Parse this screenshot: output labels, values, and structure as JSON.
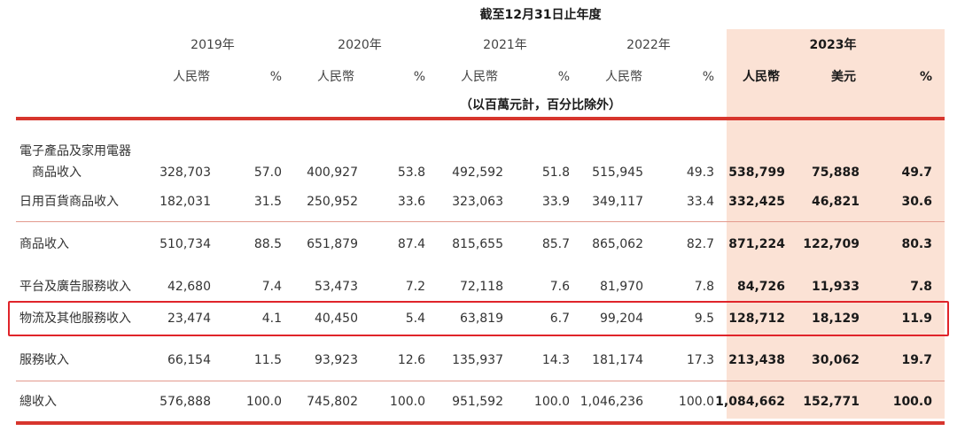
{
  "header": {
    "period": "截至12月31日止年度",
    "years": [
      "2019年",
      "2020年",
      "2021年",
      "2022年",
      "2023年"
    ],
    "currency_rmb": "人民幣",
    "currency_usd": "美元",
    "percent": "%",
    "unit_note": "（以百萬元計，百分比除外）"
  },
  "rows": [
    {
      "label": "電子產品及家用電器",
      "label2": "商品收入",
      "v2019": "328,703",
      "p2019": "57.0",
      "v2020": "400,927",
      "p2020": "53.8",
      "v2021": "492,592",
      "p2021": "51.8",
      "v2022": "515,945",
      "p2022": "49.3",
      "v2023": "538,799",
      "u2023": "75,888",
      "p2023": "49.7"
    },
    {
      "label": "日用百貨商品收入",
      "v2019": "182,031",
      "p2019": "31.5",
      "v2020": "250,952",
      "p2020": "33.6",
      "v2021": "323,063",
      "p2021": "33.9",
      "v2022": "349,117",
      "p2022": "33.4",
      "v2023": "332,425",
      "u2023": "46,821",
      "p2023": "30.6"
    },
    {
      "label": "商品收入",
      "v2019": "510,734",
      "p2019": "88.5",
      "v2020": "651,879",
      "p2020": "87.4",
      "v2021": "815,655",
      "p2021": "85.7",
      "v2022": "865,062",
      "p2022": "82.7",
      "v2023": "871,224",
      "u2023": "122,709",
      "p2023": "80.3"
    },
    {
      "label": "平台及廣告服務收入",
      "v2019": "42,680",
      "p2019": "7.4",
      "v2020": "53,473",
      "p2020": "7.2",
      "v2021": "72,118",
      "p2021": "7.6",
      "v2022": "81,970",
      "p2022": "7.8",
      "v2023": "84,726",
      "u2023": "11,933",
      "p2023": "7.8"
    },
    {
      "label": "物流及其他服務收入",
      "v2019": "23,474",
      "p2019": "4.1",
      "v2020": "40,450",
      "p2020": "5.4",
      "v2021": "63,819",
      "p2021": "6.7",
      "v2022": "99,204",
      "p2022": "9.5",
      "v2023": "128,712",
      "u2023": "18,129",
      "p2023": "11.9"
    },
    {
      "label": "服務收入",
      "v2019": "66,154",
      "p2019": "11.5",
      "v2020": "93,923",
      "p2020": "12.6",
      "v2021": "135,937",
      "p2021": "14.3",
      "v2022": "181,174",
      "p2022": "17.3",
      "v2023": "213,438",
      "u2023": "30,062",
      "p2023": "19.7"
    },
    {
      "label": "總收入",
      "v2019": "576,888",
      "p2019": "100.0",
      "v2020": "745,802",
      "p2020": "100.0",
      "v2021": "951,592",
      "p2021": "100.0",
      "v2022": "1,046,236",
      "p2022": "100.0",
      "v2023": "1,084,662",
      "u2023": "152,771",
      "p2023": "100.0"
    }
  ],
  "colors": {
    "highlight_column": "#fbe2d5",
    "rule": "#d7352d",
    "box_outline": "#e0242a"
  }
}
